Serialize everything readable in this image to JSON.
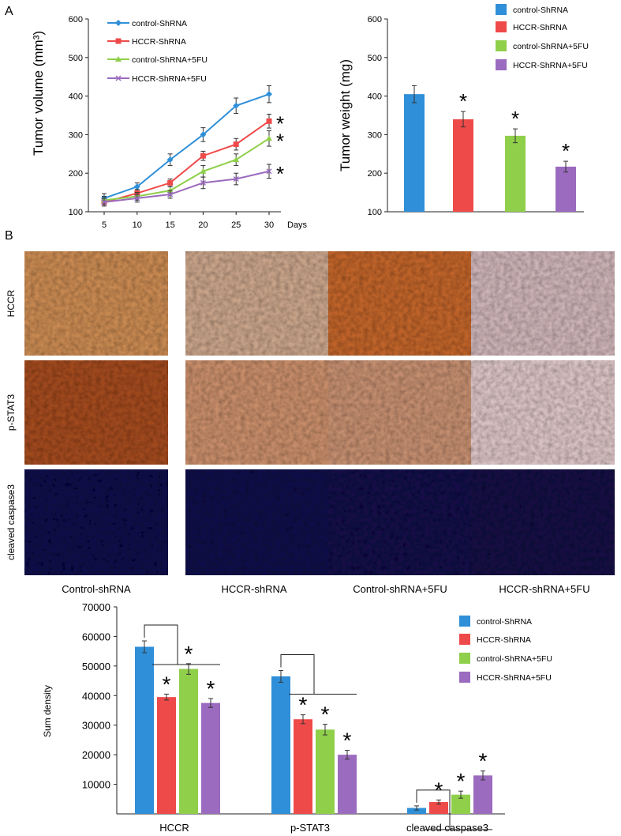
{
  "panel_labels": {
    "a": "A",
    "b": "B"
  },
  "colors": {
    "control_shrna": "#2f8fd8",
    "hccr_shrna": "#ef4a4a",
    "control_shrna_5fu": "#8fcf4a",
    "hccr_shrna_5fu": "#9b6bbf"
  },
  "legend": [
    "control-ShRNA",
    "HCCR-ShRNA",
    "control-ShRNA+5FU",
    "HCCR-ShRNA+5FU"
  ],
  "ihc": {
    "row_labels": [
      "HCCR",
      "p-STAT3",
      "cleaved caspase3"
    ],
    "column_labels": [
      "Control-shRNA",
      "HCCR-shRNA",
      "Control-shRNA+5FU",
      "HCCR-shRNA+5FU"
    ],
    "stain_colors": {
      "HCCR": [
        "#c98a52",
        "#c9a48a",
        "#c0642a",
        "#cdb3b7"
      ],
      "p-STAT3": [
        "#a24a1e",
        "#c78d6a",
        "#c48e70",
        "#d9c2c4"
      ],
      "cleaved caspase3": [
        "#0a0a4a",
        "#0c0b4a",
        "#140a48",
        "#150b44"
      ]
    }
  },
  "chart_data": [
    {
      "type": "line",
      "ylabel": "Tumor volume (mm³)",
      "xlabel": "Days",
      "x": [
        5,
        10,
        15,
        20,
        25,
        30
      ],
      "xticks": [
        "5",
        "10",
        "15",
        "20",
        "25",
        "30"
      ],
      "yticks": [
        "100",
        "200",
        "300",
        "400",
        "500",
        "600"
      ],
      "ylim": [
        100,
        600
      ],
      "series": [
        {
          "name": "control-ShRNA",
          "values": [
            135,
            165,
            235,
            300,
            375,
            405
          ],
          "err": [
            12,
            10,
            15,
            18,
            20,
            22
          ],
          "marker": "diamond"
        },
        {
          "name": "HCCR-ShRNA",
          "values": [
            125,
            148,
            175,
            245,
            275,
            335
          ],
          "err": [
            10,
            10,
            10,
            12,
            15,
            18
          ],
          "marker": "square"
        },
        {
          "name": "control-ShRNA+5FU",
          "values": [
            130,
            140,
            155,
            205,
            235,
            290
          ],
          "err": [
            10,
            10,
            10,
            15,
            15,
            20
          ],
          "marker": "triangle"
        },
        {
          "name": "HCCR-ShRNA+5FU",
          "values": [
            125,
            135,
            145,
            175,
            185,
            205
          ],
          "err": [
            10,
            10,
            10,
            15,
            15,
            18
          ],
          "marker": "x"
        }
      ],
      "significance": [
        "*",
        "*",
        "*"
      ]
    },
    {
      "type": "bar",
      "ylabel": "Tumor weight (mg)",
      "categories": [
        "control-ShRNA",
        "HCCR-ShRNA",
        "control-ShRNA+5FU",
        "HCCR-ShRNA+5FU"
      ],
      "values": [
        405,
        340,
        297,
        217
      ],
      "err": [
        22,
        20,
        18,
        14
      ],
      "yticks": [
        "100",
        "200",
        "300",
        "400",
        "500",
        "600"
      ],
      "ylim": [
        100,
        600
      ],
      "significance": [
        "",
        "*",
        "*",
        "*"
      ]
    },
    {
      "type": "bar",
      "ylabel": "Sum density",
      "categories": [
        "HCCR",
        "p-STAT3",
        "cleaved caspase3"
      ],
      "yticks": [
        "10000",
        "20000",
        "30000",
        "40000",
        "50000",
        "60000",
        "70000"
      ],
      "ylim": [
        0,
        70000
      ],
      "series": [
        {
          "name": "control-ShRNA",
          "values": [
            56500,
            46500,
            2000
          ],
          "err": [
            2000,
            2000,
            700
          ]
        },
        {
          "name": "HCCR-ShRNA",
          "values": [
            39500,
            32000,
            4000
          ],
          "err": [
            1000,
            1500,
            700
          ]
        },
        {
          "name": "control-ShRNA+5FU",
          "values": [
            49000,
            28500,
            6500
          ],
          "err": [
            1800,
            1800,
            1200
          ]
        },
        {
          "name": "HCCR-ShRNA+5FU",
          "values": [
            37500,
            20000,
            13000
          ],
          "err": [
            1500,
            1500,
            1500
          ]
        }
      ],
      "significance": "*"
    }
  ]
}
